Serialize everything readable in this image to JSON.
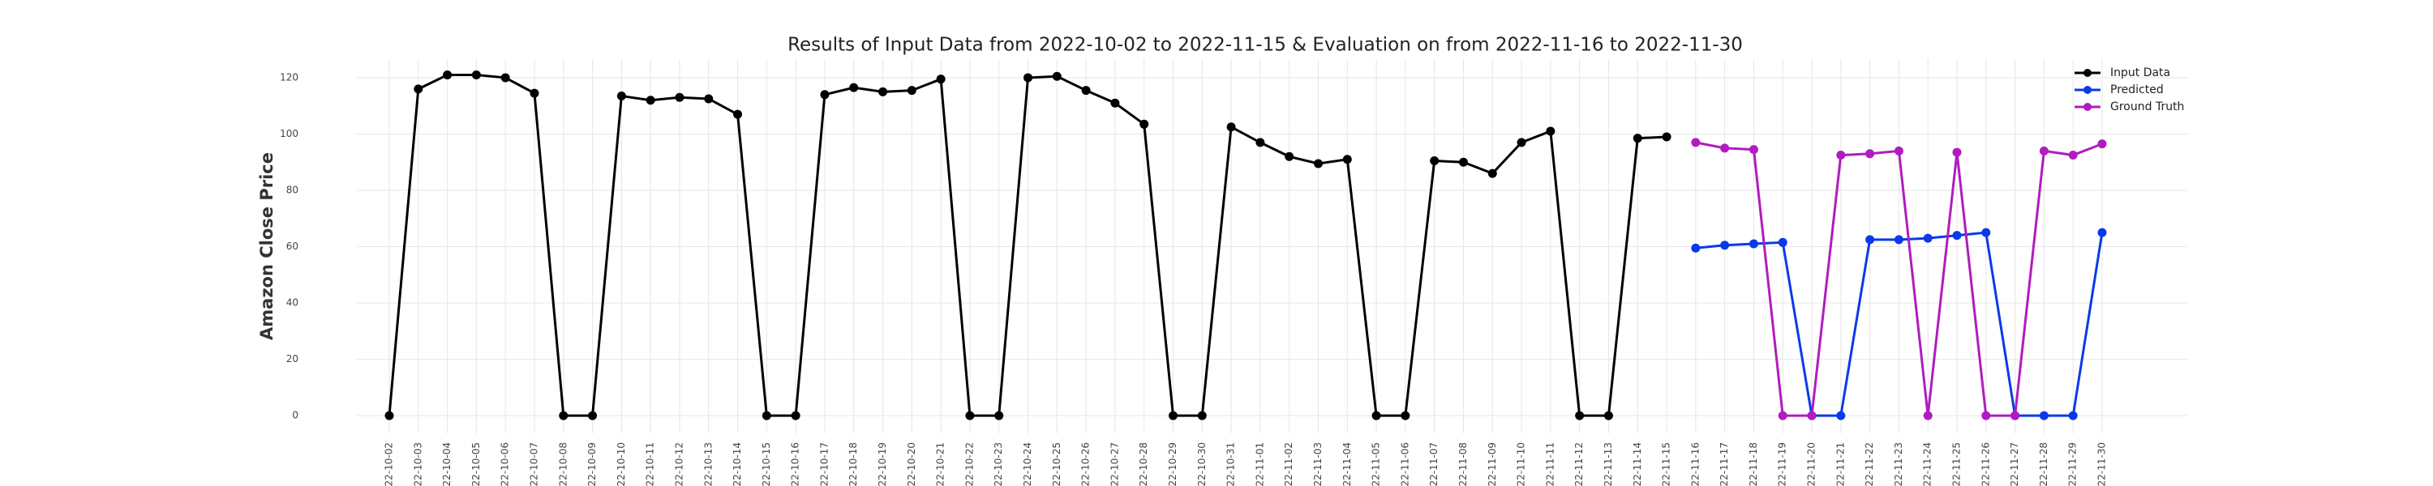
{
  "chart_data": {
    "type": "line",
    "title": "Results of Input Data from 2022-10-02 to 2022-11-15 & Evaluation on from 2022-11-16 to 2022-11-30",
    "ylabel": "Amazon Close Price",
    "categories": [
      "2022-10-02",
      "2022-10-03",
      "2022-10-04",
      "2022-10-05",
      "2022-10-06",
      "2022-10-07",
      "2022-10-08",
      "2022-10-09",
      "2022-10-10",
      "2022-10-11",
      "2022-10-12",
      "2022-10-13",
      "2022-10-14",
      "2022-10-15",
      "2022-10-16",
      "2022-10-17",
      "2022-10-18",
      "2022-10-19",
      "2022-10-20",
      "2022-10-21",
      "2022-10-22",
      "2022-10-23",
      "2022-10-24",
      "2022-10-25",
      "2022-10-26",
      "2022-10-27",
      "2022-10-28",
      "2022-10-29",
      "2022-10-30",
      "2022-10-31",
      "2022-11-01",
      "2022-11-02",
      "2022-11-03",
      "2022-11-04",
      "2022-11-05",
      "2022-11-06",
      "2022-11-07",
      "2022-11-08",
      "2022-11-09",
      "2022-11-10",
      "2022-11-11",
      "2022-11-12",
      "2022-11-13",
      "2022-11-14",
      "2022-11-15",
      "2022-11-16",
      "2022-11-17",
      "2022-11-18",
      "2022-11-19",
      "2022-11-20",
      "2022-11-21",
      "2022-11-22",
      "2022-11-23",
      "2022-11-24",
      "2022-11-25",
      "2022-11-26",
      "2022-11-27",
      "2022-11-28",
      "2022-11-29",
      "2022-11-30"
    ],
    "series": [
      {
        "name": "Input Data",
        "color": "#000000",
        "values": [
          0,
          116,
          121,
          121,
          120,
          114.5,
          0,
          0,
          113.5,
          112,
          113,
          112.5,
          107,
          0,
          0,
          114,
          116.5,
          115,
          115.5,
          119.5,
          0,
          0,
          120,
          120.5,
          115.5,
          111,
          103.5,
          0,
          0,
          102.5,
          97,
          92,
          89.5,
          91,
          0,
          0,
          90.5,
          90,
          86,
          97,
          101,
          0,
          0,
          98.5,
          99,
          null,
          null,
          null,
          null,
          null,
          null,
          null,
          null,
          null,
          null,
          null,
          null,
          null,
          null,
          null
        ]
      },
      {
        "name": "Predicted",
        "color": "#0a3ae8",
        "values": [
          null,
          null,
          null,
          null,
          null,
          null,
          null,
          null,
          null,
          null,
          null,
          null,
          null,
          null,
          null,
          null,
          null,
          null,
          null,
          null,
          null,
          null,
          null,
          null,
          null,
          null,
          null,
          null,
          null,
          null,
          null,
          null,
          null,
          null,
          null,
          null,
          null,
          null,
          null,
          null,
          null,
          null,
          null,
          null,
          null,
          59.5,
          60.5,
          61,
          61.5,
          0,
          0,
          62.5,
          62.5,
          63,
          64,
          65,
          0,
          0,
          0,
          65
        ]
      },
      {
        "name": "Ground Truth",
        "color": "#b01cc0",
        "values": [
          null,
          null,
          null,
          null,
          null,
          null,
          null,
          null,
          null,
          null,
          null,
          null,
          null,
          null,
          null,
          null,
          null,
          null,
          null,
          null,
          null,
          null,
          null,
          null,
          null,
          null,
          null,
          null,
          null,
          null,
          null,
          null,
          null,
          null,
          null,
          null,
          null,
          null,
          null,
          null,
          null,
          null,
          null,
          null,
          null,
          97,
          95,
          94.5,
          0,
          0,
          92.5,
          93,
          94,
          0,
          93.5,
          0,
          0,
          94,
          92.5,
          96.5
        ]
      }
    ],
    "ylim": [
      -6.3,
      126.6
    ],
    "yticks": [
      0,
      20,
      40,
      60,
      80,
      100,
      120
    ],
    "grid": true,
    "legend": "upper right"
  }
}
